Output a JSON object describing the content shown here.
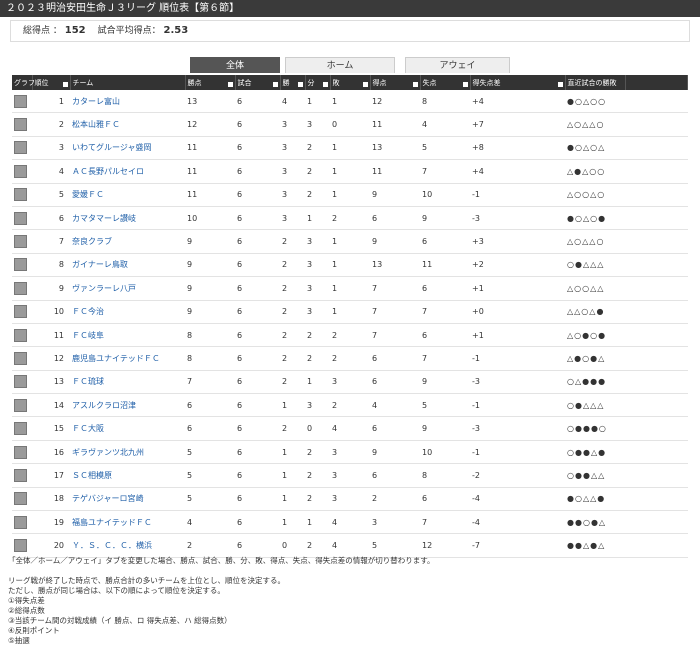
{
  "header": {
    "title": "２０２３明治安田生命Ｊ３リーグ 順位表【第６節】"
  },
  "summary": {
    "total_label": "総得点 ：",
    "total": 152,
    "avg_label": "試合平均得点：",
    "avg": 2.53
  },
  "tabs": [
    "全体",
    "ホーム",
    "アウェイ"
  ],
  "table": {
    "columns": [
      "グラフ",
      "順位",
      "チーム",
      "勝点",
      "試合",
      "勝",
      "分",
      "敗",
      "得点",
      "失点",
      "得失点差",
      "直近試合の勝敗"
    ],
    "rows": [
      [
        1,
        "カターレ富山",
        13,
        6,
        4,
        1,
        1,
        12,
        8,
        "+4",
        "●○△○○"
      ],
      [
        2,
        "松本山雅ＦＣ",
        12,
        6,
        3,
        3,
        0,
        11,
        4,
        "+7",
        "△○△△○"
      ],
      [
        3,
        "いわてグルージャ盛岡",
        11,
        6,
        3,
        2,
        1,
        13,
        5,
        "+8",
        "●○△○△"
      ],
      [
        4,
        "ＡＣ長野パルセイロ",
        11,
        6,
        3,
        2,
        1,
        11,
        7,
        "+4",
        "△●△○○"
      ],
      [
        5,
        "愛媛ＦＣ",
        11,
        6,
        3,
        2,
        1,
        9,
        10,
        -1,
        "△○○△○"
      ],
      [
        6,
        "カマタマーレ讃岐",
        10,
        6,
        3,
        1,
        2,
        6,
        9,
        -3,
        "●○△○●"
      ],
      [
        7,
        "奈良クラブ",
        9,
        6,
        2,
        3,
        1,
        9,
        6,
        "+3",
        "△○△△○"
      ],
      [
        8,
        "ガイナーレ鳥取",
        9,
        6,
        2,
        3,
        1,
        13,
        11,
        "+2",
        "○●△△△"
      ],
      [
        9,
        "ヴァンラーレ八戸",
        9,
        6,
        2,
        3,
        1,
        7,
        6,
        "+1",
        "△○○△△"
      ],
      [
        10,
        "ＦＣ今治",
        9,
        6,
        2,
        3,
        1,
        7,
        7,
        "+0",
        "△△○△●"
      ],
      [
        11,
        "ＦＣ岐阜",
        8,
        6,
        2,
        2,
        2,
        7,
        6,
        "+1",
        "△○●○●"
      ],
      [
        12,
        "鹿児島ユナイテッドＦＣ",
        8,
        6,
        2,
        2,
        2,
        6,
        7,
        -1,
        "△●○●△"
      ],
      [
        13,
        "ＦＣ琉球",
        7,
        6,
        2,
        1,
        3,
        6,
        9,
        -3,
        "○△●●●"
      ],
      [
        14,
        "アスルクラロ沼津",
        6,
        6,
        1,
        3,
        2,
        4,
        5,
        -1,
        "○●△△△"
      ],
      [
        15,
        "ＦＣ大阪",
        6,
        6,
        2,
        0,
        4,
        6,
        9,
        -3,
        "○●●●○"
      ],
      [
        16,
        "ギラヴァンツ北九州",
        5,
        6,
        1,
        2,
        3,
        9,
        10,
        -1,
        "○●●△●"
      ],
      [
        17,
        "ＳＣ相模原",
        5,
        6,
        1,
        2,
        3,
        6,
        8,
        -2,
        "○●●△△"
      ],
      [
        18,
        "テゲバジャーロ宮崎",
        5,
        6,
        1,
        2,
        3,
        2,
        6,
        -4,
        "●○△△●"
      ],
      [
        19,
        "福島ユナイテッドＦＣ",
        4,
        6,
        1,
        1,
        4,
        3,
        7,
        -4,
        "●●○●△"
      ],
      [
        20,
        "Ｙ．Ｓ．Ｃ．Ｃ．横浜",
        2,
        6,
        0,
        2,
        4,
        5,
        12,
        -7,
        "●●△●△"
      ]
    ]
  },
  "notes": [
    "「全体／ホーム／アウェイ」タブを変更した場合、勝点、試合、勝、分、敗、得点、失点、得失点差の情報が切り替わります。",
    "リーグ戦が終了した時点で、勝点合計の多いチームを上位とし、順位を決定する。",
    "ただし、勝点が同じ場合は、以下の順によって順位を決定する。",
    "①得失点差",
    "②総得点数",
    "③当該チーム間の対戦成績（イ 勝点、ロ 得失点差、ハ 総得点数）",
    "④反則ポイント",
    "⑤抽選"
  ]
}
